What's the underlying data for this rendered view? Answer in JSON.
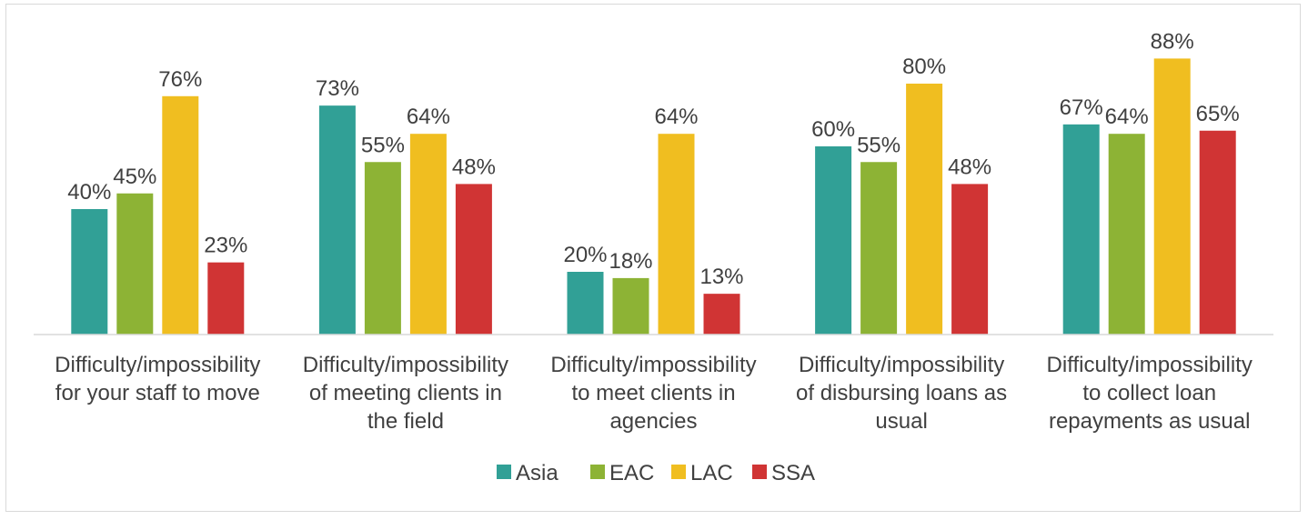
{
  "chart_data": {
    "type": "bar",
    "categories": [
      [
        "Difficulty/impossibility",
        "for your staff to move"
      ],
      [
        "Difficulty/impossibility",
        "of meeting clients in",
        "the field"
      ],
      [
        "Difficulty/impossibility",
        "to meet clients in",
        "agencies"
      ],
      [
        "Difficulty/impossibility",
        "of disbursing loans as",
        "usual"
      ],
      [
        "Difficulty/impossibility",
        "to collect loan",
        "repayments as usual"
      ]
    ],
    "series": [
      {
        "name": "Asia",
        "color": "#31a096",
        "values": [
          40,
          73,
          20,
          60,
          67
        ],
        "labels": [
          "40%",
          "73%",
          "20%",
          "60%",
          "67%"
        ]
      },
      {
        "name": "EAC",
        "color": "#8db335",
        "values": [
          45,
          55,
          18,
          55,
          64
        ],
        "labels": [
          "45%",
          "55%",
          "18%",
          "55%",
          "64%"
        ]
      },
      {
        "name": "LAC",
        "color": "#f0be20",
        "values": [
          76,
          64,
          64,
          80,
          88
        ],
        "labels": [
          "76%",
          "64%",
          "64%",
          "80%",
          "88%"
        ]
      },
      {
        "name": "SSA",
        "color": "#d03434",
        "values": [
          23,
          48,
          13,
          48,
          65
        ],
        "labels": [
          "23%",
          "48%",
          "13%",
          "48%",
          "65%"
        ]
      }
    ],
    "ylim": [
      0,
      100
    ],
    "grid": false,
    "legend_position": "bottom",
    "axis_color": "#d9d9d9"
  }
}
